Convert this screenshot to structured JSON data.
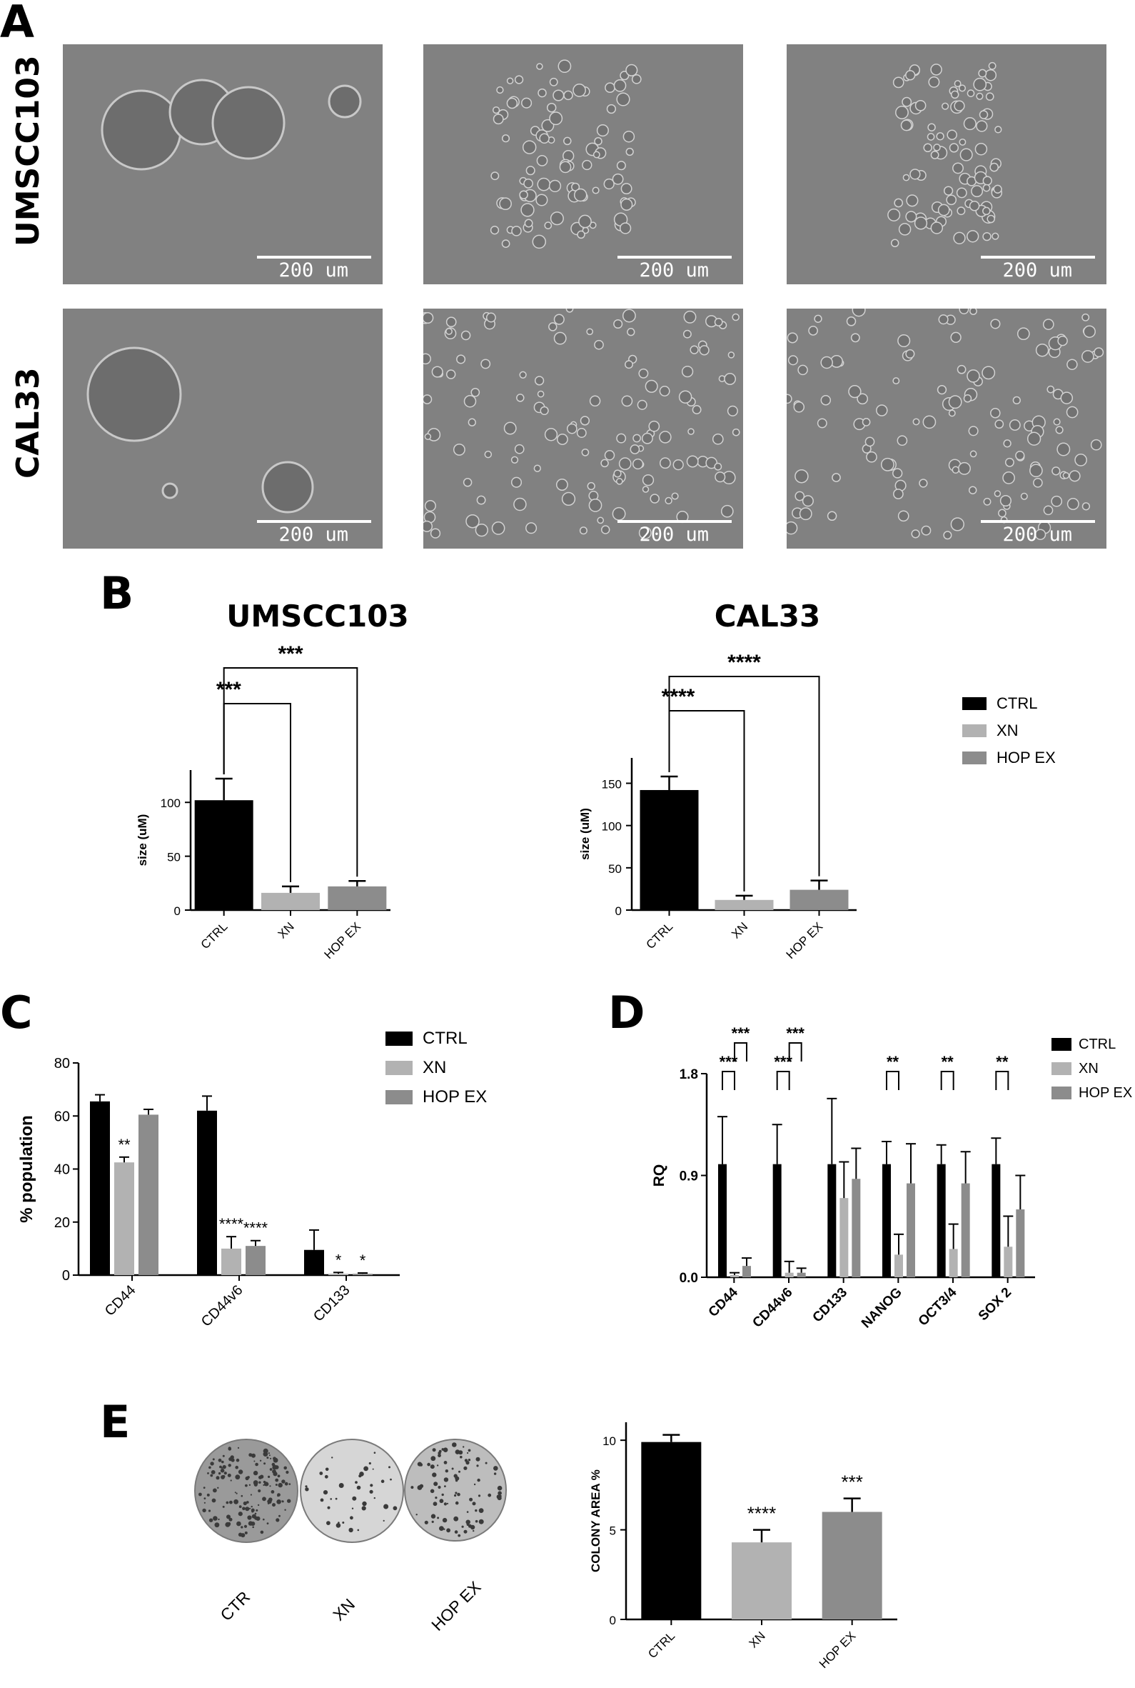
{
  "panels": {
    "A": {
      "letter": "A",
      "rows": [
        "UMSCC103",
        "CAL33"
      ],
      "scale_label": "200 um"
    },
    "B": {
      "letter": "B",
      "titles": [
        "UMSCC103",
        "CAL33"
      ]
    },
    "C": {
      "letter": "C"
    },
    "D": {
      "letter": "D"
    },
    "E": {
      "letter": "E",
      "dish_labels": [
        "CTR",
        "XN",
        "HOP EX"
      ]
    }
  },
  "colors": {
    "CTRL": "#000000",
    "XN": "#b2b2b2",
    "HOP EX": "#8c8c8c"
  },
  "chart_data": [
    {
      "id": "B-UMSCC103",
      "type": "bar",
      "title": "UMSCC103",
      "ylabel": "size (uM)",
      "categories": [
        "CTRL",
        "XN",
        "HOP EX"
      ],
      "values": [
        102,
        16,
        22
      ],
      "errors": [
        20,
        6,
        5
      ],
      "ylim": [
        0,
        130
      ],
      "yticks": [
        0,
        50,
        100
      ],
      "brackets": [
        {
          "from": 0,
          "to": 1,
          "label": "***"
        },
        {
          "from": 0,
          "to": 2,
          "label": "***"
        }
      ]
    },
    {
      "id": "B-CAL33",
      "type": "bar",
      "title": "CAL33",
      "ylabel": "size (uM)",
      "categories": [
        "CTRL",
        "XN",
        "HOP EX"
      ],
      "values": [
        142,
        12,
        24
      ],
      "errors": [
        16,
        5,
        11
      ],
      "ylim": [
        0,
        180
      ],
      "yticks": [
        0,
        50,
        100,
        150
      ],
      "brackets": [
        {
          "from": 0,
          "to": 1,
          "label": "****"
        },
        {
          "from": 0,
          "to": 2,
          "label": "****"
        }
      ],
      "legend": [
        "CTRL",
        "XN",
        "HOP EX"
      ]
    },
    {
      "id": "C",
      "type": "bar",
      "ylabel": "% population",
      "categories": [
        "CD44",
        "CD44v6",
        "CD133"
      ],
      "series": [
        {
          "name": "CTRL",
          "values": [
            65.5,
            62,
            9.5
          ],
          "errors": [
            2.5,
            5.5,
            7.5
          ]
        },
        {
          "name": "XN",
          "values": [
            42.5,
            10,
            0.5
          ],
          "errors": [
            2,
            4.5,
            0.5
          ]
        },
        {
          "name": "HOP EX",
          "values": [
            60.5,
            11,
            0.5
          ],
          "errors": [
            2,
            2,
            0.3
          ]
        }
      ],
      "annotations": [
        {
          "cat": 0,
          "series": 1,
          "label": "**"
        },
        {
          "cat": 1,
          "series": 1,
          "label": "****"
        },
        {
          "cat": 1,
          "series": 2,
          "label": "****"
        },
        {
          "cat": 2,
          "series": 1,
          "label": "*"
        },
        {
          "cat": 2,
          "series": 2,
          "label": "*"
        }
      ],
      "ylim": [
        0,
        80
      ],
      "yticks": [
        0,
        20,
        40,
        60,
        80
      ],
      "legend": [
        "CTRL",
        "XN",
        "HOP EX"
      ]
    },
    {
      "id": "D",
      "type": "bar",
      "ylabel": "RQ",
      "categories": [
        "CD44",
        "CD44v6",
        "CD133",
        "NANOG",
        "OCT3/4",
        "SOX 2"
      ],
      "series": [
        {
          "name": "CTRL",
          "values": [
            1.0,
            1.0,
            1.0,
            1.0,
            1.0,
            1.0
          ],
          "errors": [
            0.42,
            0.35,
            0.58,
            0.2,
            0.17,
            0.23
          ]
        },
        {
          "name": "XN",
          "values": [
            0.02,
            0.04,
            0.7,
            0.2,
            0.25,
            0.27
          ],
          "errors": [
            0.02,
            0.1,
            0.32,
            0.18,
            0.22,
            0.27
          ]
        },
        {
          "name": "HOP EX",
          "values": [
            0.1,
            0.04,
            0.87,
            0.83,
            0.83,
            0.6
          ],
          "errors": [
            0.07,
            0.04,
            0.27,
            0.35,
            0.28,
            0.3
          ]
        }
      ],
      "brackets": [
        {
          "cat": 0,
          "from": 0,
          "to": 1,
          "label": "***",
          "level": 0
        },
        {
          "cat": 0,
          "from": 1,
          "to": 2,
          "label": "***",
          "level": 1
        },
        {
          "cat": 1,
          "from": 0,
          "to": 1,
          "label": "***",
          "level": 0
        },
        {
          "cat": 1,
          "from": 1,
          "to": 2,
          "label": "***",
          "level": 1
        },
        {
          "cat": 3,
          "from": 0,
          "to": 1,
          "label": "**",
          "level": 0
        },
        {
          "cat": 4,
          "from": 0,
          "to": 1,
          "label": "**",
          "level": 0
        },
        {
          "cat": 5,
          "from": 0,
          "to": 1,
          "label": "**",
          "level": 0
        }
      ],
      "ylim": [
        0,
        1.8
      ],
      "yticks": [
        0,
        0.9,
        1.8
      ],
      "ytick_labels": [
        "0.0",
        "0.9",
        "1.8"
      ],
      "legend": [
        "CTRL",
        "XN",
        "HOP EX"
      ]
    },
    {
      "id": "E",
      "type": "bar",
      "ylabel": "COLONY AREA %",
      "categories": [
        "CTRL",
        "XN",
        "HOP EX"
      ],
      "values": [
        9.9,
        4.3,
        6.0
      ],
      "errors": [
        0.4,
        0.7,
        0.75
      ],
      "annotations": [
        "",
        "****",
        "***"
      ],
      "ylim": [
        0,
        11
      ],
      "yticks": [
        0,
        5,
        10
      ]
    }
  ]
}
